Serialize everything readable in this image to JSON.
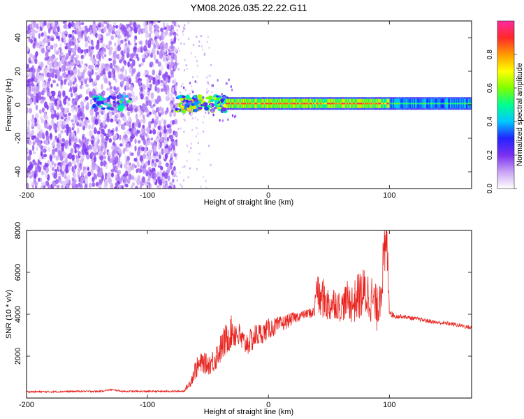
{
  "title": "YM08.2026.035.22.22.G11",
  "chart_data": [
    {
      "type": "heatmap",
      "xlabel": "Height of straight line (km)",
      "ylabel": "Frequency (Hz)",
      "xlim": [
        -200,
        168
      ],
      "ylim": [
        -50,
        50
      ],
      "xticks": [
        -200,
        -100,
        0,
        100
      ],
      "yticks": [
        -40,
        -20,
        0,
        20,
        40
      ],
      "colorbar": {
        "label": "Normalized spectral amplitude",
        "range": [
          0,
          1
        ],
        "ticks": [
          "0.0",
          "0.2",
          "0.4",
          "0.6",
          "0.8"
        ],
        "colors": [
          "#ffffff",
          "#c9a3f5",
          "#7a2ff0",
          "#2323ff",
          "#00c8ff",
          "#00ff90",
          "#7fff00",
          "#ffff00",
          "#ff9a00",
          "#ff2a2a",
          "#ff2aa0"
        ]
      },
      "regions": [
        {
          "name": "noise",
          "x": [
            -200,
            -76
          ],
          "y": [
            -50,
            50
          ],
          "level": 0.12
        },
        {
          "name": "weak-blob",
          "x": [
            -145,
            -112
          ],
          "y": [
            -3,
            6
          ],
          "level": 0.35
        },
        {
          "name": "signal-start",
          "x": [
            -76,
            -35
          ],
          "y": [
            -4,
            5
          ],
          "level": 0.5
        },
        {
          "name": "signal-band",
          "x": [
            -35,
            168
          ],
          "y": [
            -1.5,
            3
          ],
          "level": 0.9
        }
      ]
    },
    {
      "type": "line",
      "xlabel": "Height of straight line (km)",
      "ylabel": "SNR (10 * v/v)",
      "xlim": [
        -200,
        168
      ],
      "ylim": [
        0,
        8000
      ],
      "xticks": [
        -200,
        -100,
        0,
        100
      ],
      "yticks": [
        2000,
        4000,
        6000,
        8000
      ],
      "line_color": "#e8231e",
      "series": [
        {
          "x": [
            -200,
            -180,
            -160,
            -140,
            -130,
            -120,
            -100,
            -80,
            -70,
            -65,
            -60,
            -55,
            -50,
            -45,
            -40,
            -35,
            -30,
            -25,
            -20,
            -15,
            -10,
            -5,
            0,
            10,
            20,
            30,
            38,
            40,
            42,
            45,
            50,
            55,
            60,
            65,
            70,
            75,
            80,
            85,
            90,
            95,
            98,
            100,
            102,
            105,
            110,
            120,
            130,
            140,
            150,
            160,
            168
          ],
          "y": [
            300,
            300,
            320,
            320,
            400,
            320,
            320,
            320,
            330,
            700,
            1400,
            1700,
            1600,
            1800,
            2300,
            2800,
            3200,
            3000,
            2600,
            2700,
            3000,
            3100,
            3300,
            3500,
            3800,
            4000,
            4100,
            5500,
            4600,
            4800,
            4400,
            4600,
            4300,
            4700,
            4500,
            4900,
            5000,
            4800,
            4200,
            6200,
            7500,
            4300,
            4000,
            3900,
            3900,
            3800,
            3700,
            3600,
            3550,
            3450,
            3350
          ],
          "noise_amplitude": [
            40,
            40,
            40,
            40,
            40,
            40,
            40,
            40,
            40,
            200,
            500,
            500,
            500,
            600,
            700,
            800,
            800,
            700,
            600,
            600,
            600,
            500,
            500,
            400,
            300,
            200,
            300,
            800,
            900,
            1000,
            900,
            800,
            700,
            900,
            1000,
            1200,
            1300,
            1200,
            1100,
            1500,
            1500,
            400,
            150,
            120,
            100,
            100,
            100,
            100,
            100,
            100,
            100
          ]
        }
      ]
    }
  ]
}
